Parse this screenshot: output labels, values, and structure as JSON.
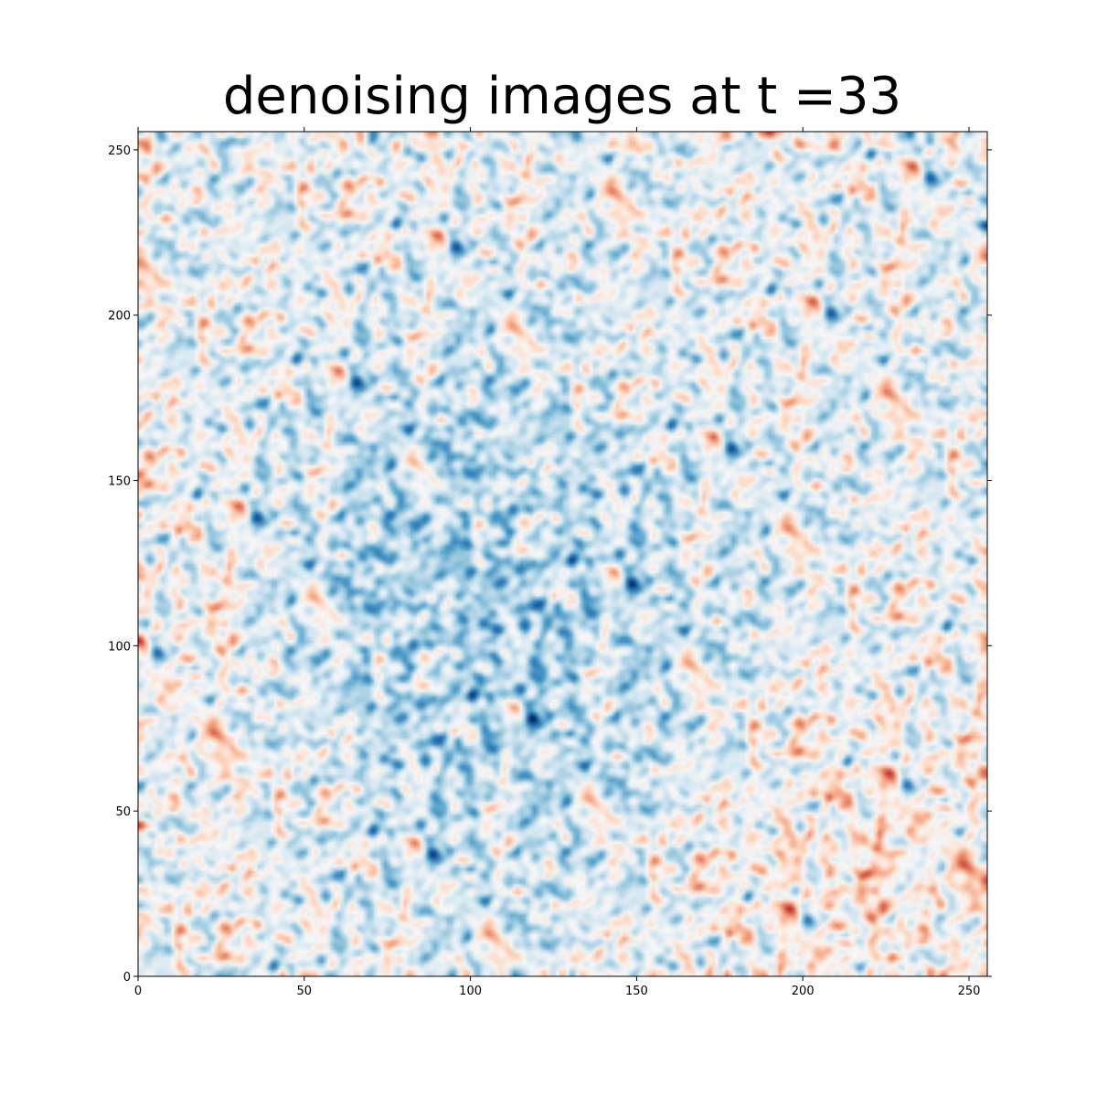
{
  "chart_data": {
    "type": "heatmap",
    "title": "denoising images at t =33",
    "xlabel": "",
    "ylabel": "",
    "xlim": [
      0,
      255
    ],
    "ylim": [
      0,
      255
    ],
    "grid_size": [
      256,
      256
    ],
    "origin": "lower",
    "xticks": [
      0,
      50,
      100,
      150,
      200,
      250
    ],
    "yticks": [
      0,
      50,
      100,
      150,
      200,
      250
    ],
    "colormap": "RdBu_r",
    "colors": {
      "negative": "#053061",
      "neutral": "#f7f7f7",
      "positive": "#b2182b"
    },
    "grid": false
  }
}
